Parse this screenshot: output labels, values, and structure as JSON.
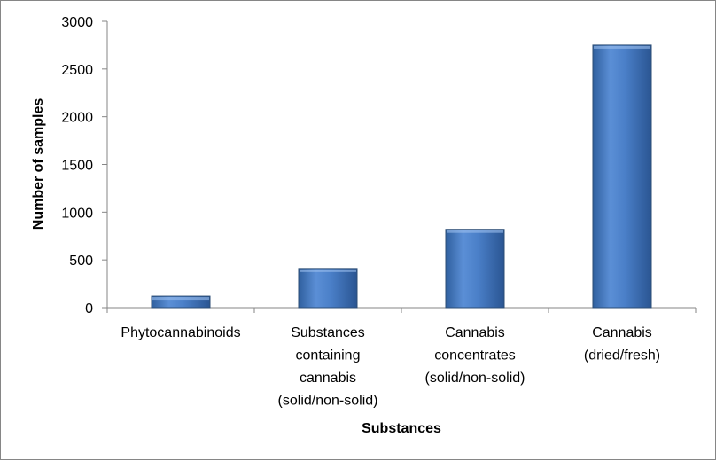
{
  "chart_data": {
    "type": "bar",
    "title": "",
    "xlabel": "Substances",
    "ylabel": "Number of samples",
    "ylim": [
      0,
      3000
    ],
    "yticks": [
      0,
      500,
      1000,
      1500,
      2000,
      2500,
      3000
    ],
    "grid": false,
    "legend": "none",
    "categories": [
      [
        "Phytocannabinoids"
      ],
      [
        "Substances",
        "containing",
        "cannabis",
        "(solid/non-solid)"
      ],
      [
        "Cannabis",
        "concentrates",
        "(solid/non-solid)"
      ],
      [
        "Cannabis",
        "(dried/fresh)"
      ]
    ],
    "values": [
      120,
      410,
      820,
      2750
    ],
    "bar_color": "#4f81bd"
  }
}
